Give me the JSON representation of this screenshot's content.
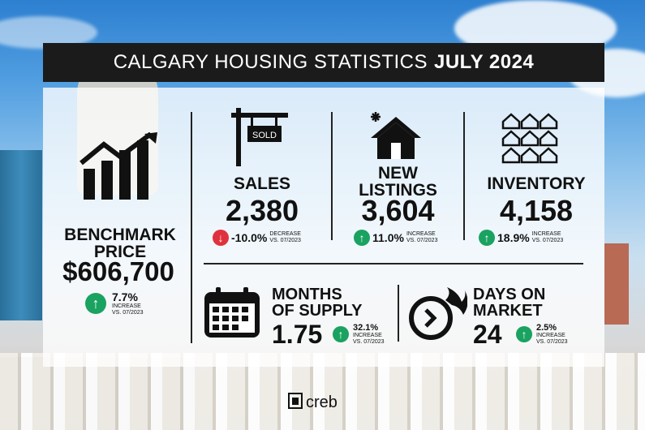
{
  "title": {
    "main": "CALGARY HOUSING STATISTICS",
    "period": "JULY 2024"
  },
  "benchmark": {
    "label_line1": "BENCHMARK",
    "label_line2": "PRICE",
    "value": "$606,700",
    "change": "7.7%",
    "direction": "increase",
    "note_line1": "INCREASE",
    "note_line2": "VS. 07/2023",
    "icon": "bar-chart-growth-icon"
  },
  "sales": {
    "label": "SALES",
    "value": "2,380",
    "change": "-10.0%",
    "direction": "decrease",
    "note_line1": "DECREASE",
    "note_line2": "VS. 07/2023",
    "icon": "sold-sign-icon",
    "sign_text": "SOLD"
  },
  "new_listings": {
    "label_line1": "NEW",
    "label_line2": "LISTINGS",
    "value": "3,604",
    "change": "11.0%",
    "direction": "increase",
    "note_line1": "INCREASE",
    "note_line2": "VS. 07/2023",
    "icon": "new-house-icon"
  },
  "inventory": {
    "label": "INVENTORY",
    "value": "4,158",
    "change": "18.9%",
    "direction": "increase",
    "note_line1": "INCREASE",
    "note_line2": "VS. 07/2023",
    "icon": "houses-grid-icon"
  },
  "months_supply": {
    "label_line1": "MONTHS",
    "label_line2": "OF SUPPLY",
    "value": "1.75",
    "change": "32.1%",
    "direction": "increase",
    "note_line1": "INCREASE",
    "note_line2": "VS. 07/2023",
    "icon": "calendar-icon"
  },
  "days_on_market": {
    "label_line1": "DAYS ON",
    "label_line2": "MARKET",
    "value": "24",
    "change": "2.5%",
    "direction": "increase",
    "note_line1": "INCREASE",
    "note_line2": "VS. 07/2023",
    "icon": "fast-clock-icon"
  },
  "brand": {
    "name": "creb",
    "icon": "creb-logo-icon"
  },
  "colors": {
    "increase": "#1aa260",
    "decrease": "#e0323c",
    "title_bg": "#1b1b1b"
  }
}
